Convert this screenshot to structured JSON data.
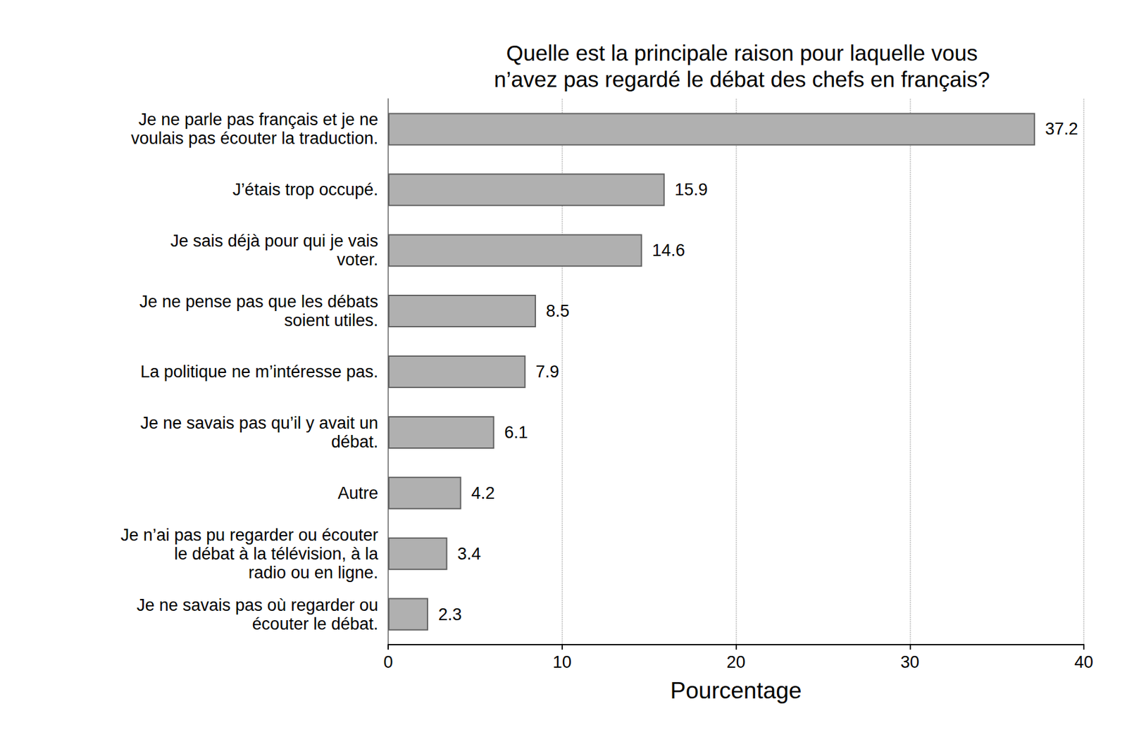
{
  "chart_data": {
    "type": "bar",
    "orientation": "horizontal",
    "title": "Quelle est la principale raison pour laquelle vous\nn’avez pas regardé le débat des chefs en français?",
    "x_label": "Pourcentage",
    "categories": [
      "Je ne parle pas français et je ne\nvoulais pas écouter la traduction.",
      "J’étais trop occupé.",
      "Je sais déjà pour qui je vais\nvoter.",
      "Je ne pense pas que les débats\nsoient utiles.",
      "La politique ne m’intéresse pas.",
      "Je ne savais pas qu’il y avait un\ndébat.",
      "Autre",
      "Je n’ai pas pu regarder ou écouter\nle débat à la télévision, à la\nradio ou en ligne.",
      "Je ne savais pas où regarder ou\nécouter le débat."
    ],
    "values": [
      37.2,
      15.9,
      14.6,
      8.5,
      7.9,
      6.1,
      4.2,
      3.4,
      2.3
    ],
    "color": "#b0b0b0",
    "xlim": [
      0,
      40
    ],
    "xticks": [
      0,
      10,
      20,
      30,
      40
    ],
    "grid": true,
    "data_labels": true
  }
}
